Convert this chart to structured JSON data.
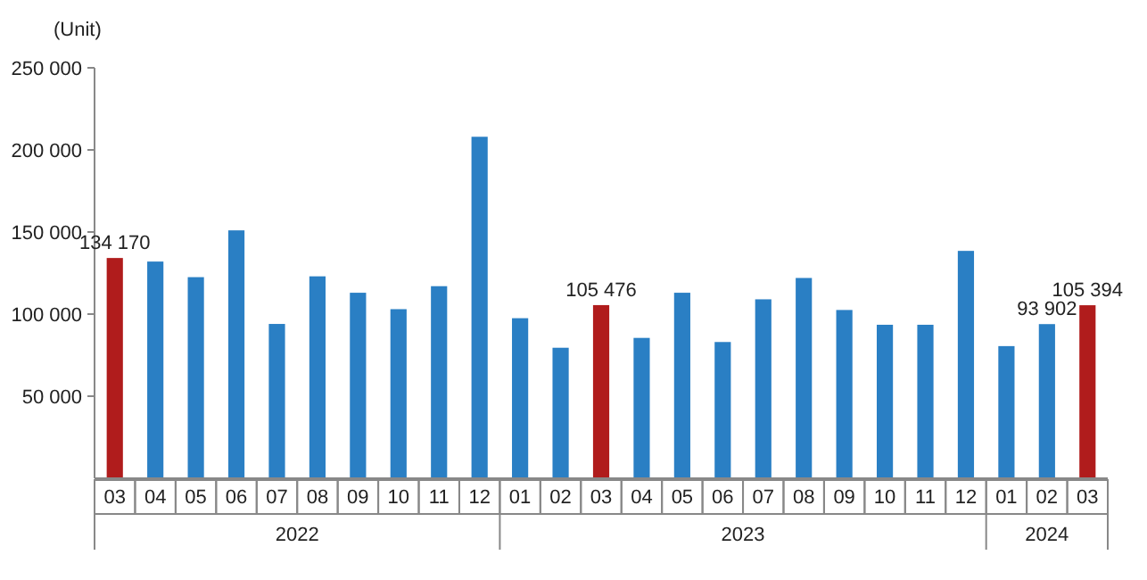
{
  "chart_data": {
    "type": "bar",
    "ylabel": "(Unit)",
    "categories": [
      "03",
      "04",
      "05",
      "06",
      "07",
      "08",
      "09",
      "10",
      "11",
      "12",
      "01",
      "02",
      "03",
      "04",
      "05",
      "06",
      "07",
      "08",
      "09",
      "10",
      "11",
      "12",
      "01",
      "02",
      "03"
    ],
    "values": [
      134170,
      132000,
      122500,
      151000,
      94000,
      123000,
      113000,
      103000,
      117000,
      208000,
      97500,
      79500,
      105476,
      85500,
      113000,
      83000,
      109000,
      122000,
      102500,
      93500,
      93500,
      138500,
      80500,
      93902,
      105394
    ],
    "colors": [
      "#b01c1c",
      "#2a7fc4",
      "#2a7fc4",
      "#2a7fc4",
      "#2a7fc4",
      "#2a7fc4",
      "#2a7fc4",
      "#2a7fc4",
      "#2a7fc4",
      "#2a7fc4",
      "#2a7fc4",
      "#2a7fc4",
      "#b01c1c",
      "#2a7fc4",
      "#2a7fc4",
      "#2a7fc4",
      "#2a7fc4",
      "#2a7fc4",
      "#2a7fc4",
      "#2a7fc4",
      "#2a7fc4",
      "#2a7fc4",
      "#2a7fc4",
      "#2a7fc4",
      "#b01c1c"
    ],
    "value_labels": [
      "134 170",
      null,
      null,
      null,
      null,
      null,
      null,
      null,
      null,
      null,
      null,
      null,
      "105 476",
      null,
      null,
      null,
      null,
      null,
      null,
      null,
      null,
      null,
      null,
      "93 902",
      "105 394"
    ],
    "ylim": [
      0,
      250000
    ],
    "yticks": [
      {
        "value": 50000,
        "label": "50 000"
      },
      {
        "value": 100000,
        "label": "100 000"
      },
      {
        "value": 150000,
        "label": "150 000"
      },
      {
        "value": 200000,
        "label": "200 000"
      },
      {
        "value": 250000,
        "label": "250 000"
      }
    ],
    "annotations": [
      "2022",
      "2023",
      "2024"
    ],
    "grid": false
  }
}
